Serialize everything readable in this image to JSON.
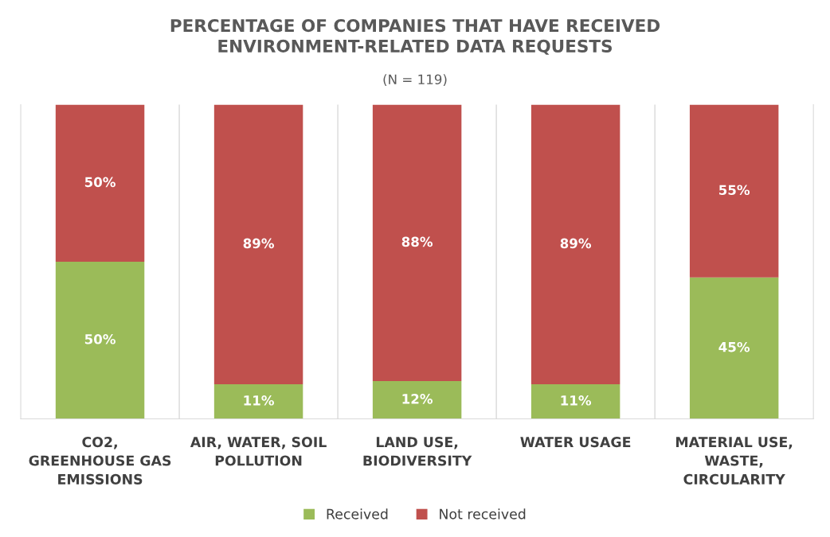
{
  "chart_data": {
    "type": "bar",
    "title": "PERCENTAGE OF COMPANIES THAT HAVE RECEIVED\nENVIRONMENT-RELATED DATA REQUESTS",
    "subtitle": "(N = 119)",
    "categories": [
      "CO2,\nGREENHOUSE GAS\nEMISSIONS",
      "AIR, WATER, SOIL\nPOLLUTION",
      "LAND USE,\nBIODIVERSITY",
      "WATER USAGE",
      "MATERIAL USE,\nWASTE,\nCIRCULARITY"
    ],
    "stacked": true,
    "series": [
      {
        "name": "Received",
        "color": "#9bbb59",
        "values": [
          50,
          11,
          12,
          11,
          45
        ],
        "value_labels": [
          "50%",
          "11%",
          "12%",
          "11%",
          "45%"
        ]
      },
      {
        "name": "Not received",
        "color": "#c0504d",
        "values": [
          50,
          89,
          88,
          89,
          55
        ],
        "value_labels": [
          "50%",
          "89%",
          "88%",
          "89%",
          "55%"
        ]
      }
    ],
    "legend": "bottom",
    "grid": false
  }
}
